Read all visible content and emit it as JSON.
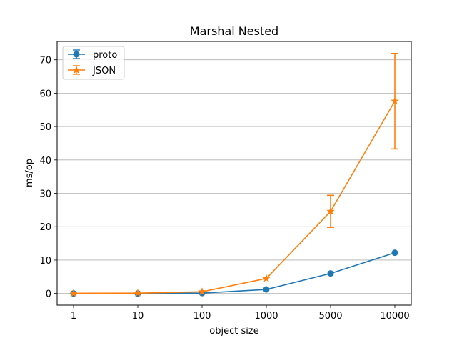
{
  "chart_data": {
    "type": "line",
    "title": "Marshal Nested",
    "xlabel": "object size",
    "ylabel": "ms/op",
    "categories": [
      "1",
      "10",
      "100",
      "1000",
      "5000",
      "10000"
    ],
    "ylim": [
      -3.5,
      75.5
    ],
    "yticks": [
      "0",
      "10",
      "20",
      "30",
      "40",
      "50",
      "60",
      "70"
    ],
    "grid": "horizontal",
    "legend_position": "top-left",
    "series": [
      {
        "name": "proto",
        "color": "#1f77b4",
        "marker": "circle",
        "values": [
          0.0,
          0.0,
          0.1,
          1.2,
          6.0,
          12.2
        ],
        "err": [
          0,
          0,
          0,
          0,
          0,
          0
        ]
      },
      {
        "name": "JSON",
        "color": "#ff7f0e",
        "marker": "star",
        "values": [
          0.05,
          0.1,
          0.5,
          4.5,
          24.6,
          57.6
        ],
        "err": [
          0,
          0,
          0,
          0,
          4.8,
          14.3
        ]
      }
    ]
  }
}
